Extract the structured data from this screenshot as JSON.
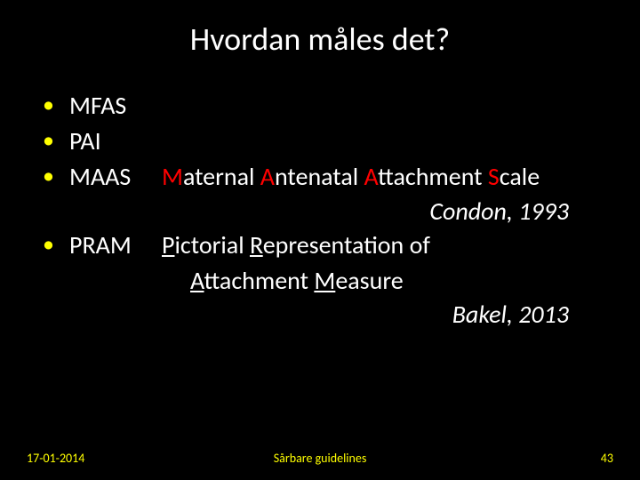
{
  "title": "Hvordan måles det?",
  "items": {
    "i1": {
      "abbr": "MFAS"
    },
    "i2": {
      "abbr": "PAI"
    },
    "i3": {
      "abbr": "MAAS",
      "word1_initial": "M",
      "word1_rest": "aternal",
      "word2_initial": "A",
      "word2_rest": "ntenatal",
      "word3_initial": "A",
      "word3_rest": "ttachment",
      "word4_initial": "S",
      "word4_rest": "cale",
      "citation": "Condon, 1993"
    },
    "i4": {
      "abbr": "PRAM",
      "w1_i": "P",
      "w1_r": "ictorial",
      "w2_i": "R",
      "w2_r": "epresentation",
      "mid": "of",
      "w3_i": "A",
      "w3_r": "ttachment",
      "w4_i": "M",
      "w4_r": "easure",
      "citation": "Bakel, 2013"
    }
  },
  "footer": {
    "date": "17-01-2014",
    "center": "Sårbare guidelines",
    "page": "43"
  },
  "colors": {
    "background": "#000000",
    "title": "#ffffff",
    "text": "#ffffff",
    "bullet": "#ffff00",
    "highlight": "#ff0000",
    "footer": "#ffff00"
  },
  "typography": {
    "title_fontsize": 36,
    "body_fontsize": 28,
    "footer_fontsize": 14,
    "font_family": "Calibri"
  }
}
